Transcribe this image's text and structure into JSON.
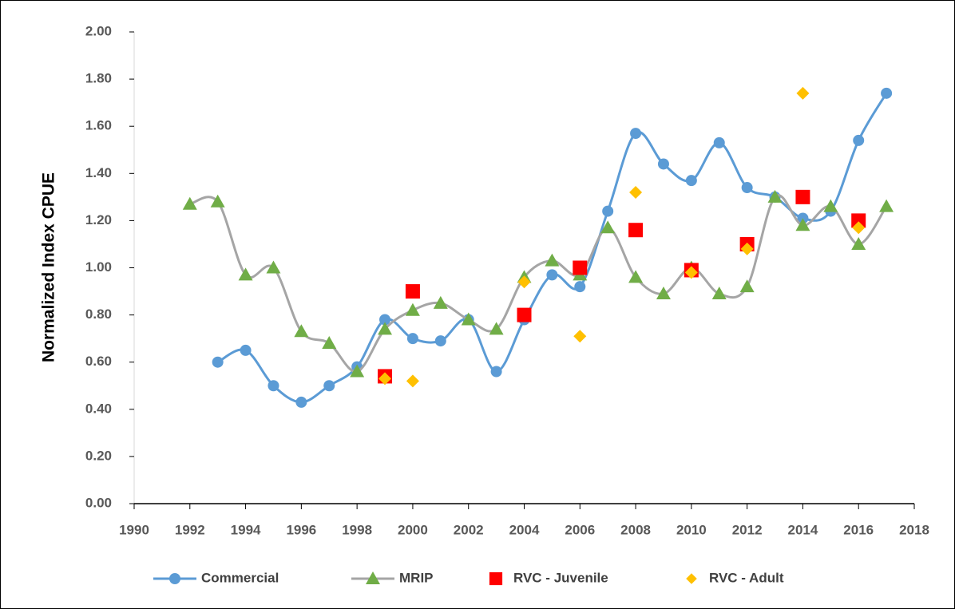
{
  "chart_data": {
    "type": "line",
    "y_label": "Normalized Index CPUE",
    "xlim": [
      1990,
      2018
    ],
    "xticks": [
      1990,
      1992,
      1994,
      1996,
      1998,
      2000,
      2002,
      2004,
      2006,
      2008,
      2010,
      2012,
      2014,
      2016,
      2018
    ],
    "ylim": [
      0,
      2
    ],
    "yticks": [
      {
        "value": 0,
        "label": "0.00"
      },
      {
        "value": 0.2,
        "label": "0.20"
      },
      {
        "value": 0.4,
        "label": "0.40"
      },
      {
        "value": 0.6,
        "label": "0.60"
      },
      {
        "value": 0.8,
        "label": "0.80"
      },
      {
        "value": 1,
        "label": "1.00"
      },
      {
        "value": 1.2,
        "label": "1.20"
      },
      {
        "value": 1.4,
        "label": "1.40"
      },
      {
        "value": 1.6,
        "label": "1.60"
      },
      {
        "value": 1.8,
        "label": "1.80"
      },
      {
        "value": 2,
        "label": "2.00"
      }
    ],
    "grid": false,
    "legend": "bottom",
    "series": [
      {
        "name": "Commercial",
        "color": "#5b9bd5",
        "line_color": "#5b9bd5",
        "marker": "circle",
        "smooth": true,
        "x": [
          1993,
          1994,
          1995,
          1996,
          1997,
          1998,
          1999,
          2000,
          2001,
          2002,
          2003,
          2004,
          2005,
          2006,
          2007,
          2008,
          2009,
          2010,
          2011,
          2012,
          2013,
          2014,
          2015,
          2016,
          2017
        ],
        "values": [
          0.6,
          0.65,
          0.5,
          0.43,
          0.5,
          0.58,
          0.78,
          0.7,
          0.69,
          0.78,
          0.56,
          0.78,
          0.97,
          0.92,
          1.24,
          1.57,
          1.44,
          1.37,
          1.53,
          1.34,
          1.3,
          1.21,
          1.24,
          1.54,
          1.74
        ]
      },
      {
        "name": "MRIP",
        "color": "#70ad47",
        "line_color": "#a5a5a5",
        "marker": "triangle",
        "smooth": true,
        "x": [
          1992,
          1993,
          1994,
          1995,
          1996,
          1997,
          1998,
          1999,
          2000,
          2001,
          2002,
          2003,
          2004,
          2005,
          2006,
          2007,
          2008,
          2009,
          2010,
          2011,
          2012,
          2013,
          2014,
          2015,
          2016,
          2017
        ],
        "values": [
          1.27,
          1.28,
          0.97,
          1.0,
          0.73,
          0.68,
          0.56,
          0.74,
          0.82,
          0.85,
          0.78,
          0.74,
          0.96,
          1.03,
          0.97,
          1.17,
          0.96,
          0.89,
          1.0,
          0.89,
          0.92,
          1.3,
          1.18,
          1.26,
          1.1,
          1.26
        ]
      },
      {
        "name": "RVC - Juvenile",
        "color": "#ff0000",
        "line_color": null,
        "marker": "square",
        "smooth": false,
        "x": [
          1999,
          2000,
          2004,
          2006,
          2008,
          2010,
          2012,
          2014,
          2016
        ],
        "values": [
          0.54,
          0.9,
          0.8,
          1.0,
          1.16,
          0.99,
          1.1,
          1.3,
          1.2
        ]
      },
      {
        "name": "RVC - Adult",
        "color": "#ffc000",
        "line_color": null,
        "marker": "diamond",
        "smooth": false,
        "x": [
          1999,
          2000,
          2004,
          2006,
          2008,
          2010,
          2012,
          2014,
          2016
        ],
        "values": [
          0.53,
          0.52,
          0.94,
          0.71,
          1.32,
          0.98,
          1.08,
          1.74,
          1.17
        ]
      }
    ]
  }
}
